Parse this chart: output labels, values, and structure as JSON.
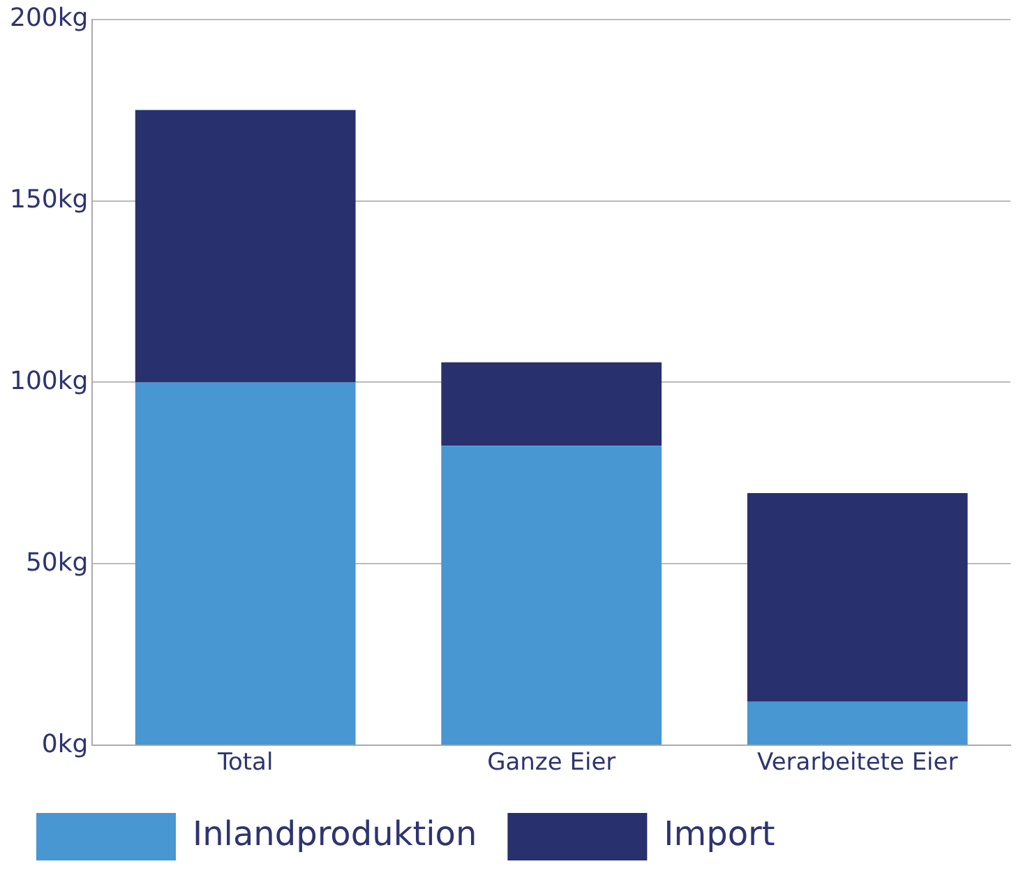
{
  "chart_data": {
    "type": "bar",
    "stacked": true,
    "categories": [
      "Total",
      "Ganze Eier",
      "Verarbeitete Eier"
    ],
    "series": [
      {
        "name": "Inlandproduktion",
        "color": "#4896d2",
        "values": [
          100,
          82.5,
          12
        ]
      },
      {
        "name": "Import",
        "color": "#28306e",
        "values": [
          75,
          23,
          57.5
        ]
      }
    ],
    "ylim": [
      0,
      200
    ],
    "yticks": [
      {
        "value": 0,
        "label": "0kg"
      },
      {
        "value": 50,
        "label": "50kg"
      },
      {
        "value": 100,
        "label": "100kg"
      },
      {
        "value": 150,
        "label": "150kg"
      },
      {
        "value": 200,
        "label": "200kg"
      }
    ],
    "grid": "y",
    "legend": "bottom"
  }
}
